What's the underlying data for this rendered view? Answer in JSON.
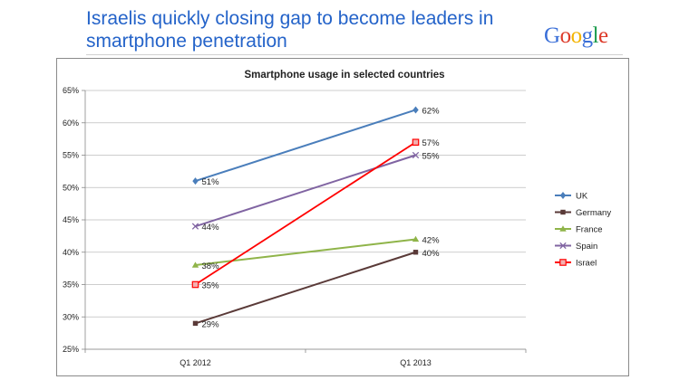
{
  "slide": {
    "title": "Israelis quickly closing gap to become leaders in smartphone penetration",
    "logo": {
      "text": "Google",
      "letter_colors": [
        "#3a6fd8",
        "#dd3b2a",
        "#f4b400",
        "#3a6fd8",
        "#1a9b4b",
        "#dd3b2a"
      ]
    }
  },
  "chart_data": {
    "type": "line",
    "title": "Smartphone usage in selected countries",
    "categories": [
      "Q1 2012",
      "Q1 2013"
    ],
    "y_ticks": [
      "25%",
      "30%",
      "35%",
      "40%",
      "45%",
      "50%",
      "55%",
      "60%",
      "65%"
    ],
    "ylim": [
      25,
      65
    ],
    "y_step": 5,
    "grid": true,
    "legend_position": "right",
    "series": [
      {
        "name": "UK",
        "values": [
          51,
          62
        ],
        "labels": [
          "51%",
          "62%"
        ],
        "color": "#4a7ebb",
        "marker": "diamond"
      },
      {
        "name": "Germany",
        "values": [
          29,
          40
        ],
        "labels": [
          "29%",
          "40%"
        ],
        "color": "#5a3a38",
        "marker": "square"
      },
      {
        "name": "France",
        "values": [
          38,
          42
        ],
        "labels": [
          "38%",
          "42%"
        ],
        "color": "#8fb449",
        "marker": "triangle"
      },
      {
        "name": "Spain",
        "values": [
          44,
          55
        ],
        "labels": [
          "44%",
          "55%"
        ],
        "color": "#8064a2",
        "marker": "x"
      },
      {
        "name": "Israel",
        "values": [
          35,
          57
        ],
        "labels": [
          "35%",
          "57%"
        ],
        "color": "#ff0000",
        "marker": "square-open"
      }
    ]
  }
}
